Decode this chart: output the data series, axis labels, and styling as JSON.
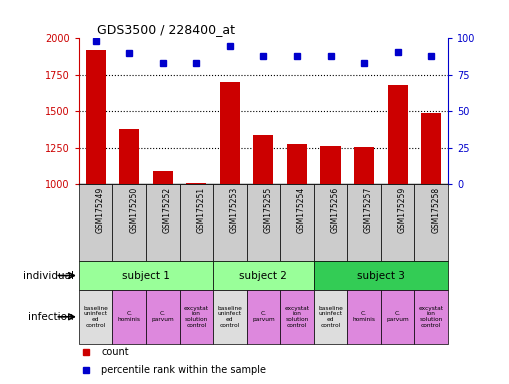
{
  "title": "GDS3500 / 228400_at",
  "samples": [
    "GSM175249",
    "GSM175250",
    "GSM175252",
    "GSM175251",
    "GSM175253",
    "GSM175255",
    "GSM175254",
    "GSM175256",
    "GSM175257",
    "GSM175259",
    "GSM175258"
  ],
  "counts": [
    1920,
    1380,
    1090,
    1010,
    1700,
    1340,
    1275,
    1265,
    1255,
    1680,
    1490
  ],
  "percentile_ranks": [
    98,
    90,
    83,
    83,
    95,
    88,
    88,
    88,
    83,
    91,
    88
  ],
  "ylim_left": [
    1000,
    2000
  ],
  "ylim_right": [
    0,
    100
  ],
  "yticks_left": [
    1000,
    1250,
    1500,
    1750,
    2000
  ],
  "yticks_right": [
    0,
    25,
    50,
    75,
    100
  ],
  "bar_color": "#cc0000",
  "dot_color": "#0000cc",
  "subjects": [
    {
      "label": "subject 1",
      "start": 0,
      "end": 4,
      "color": "#99ff99"
    },
    {
      "label": "subject 2",
      "start": 4,
      "end": 7,
      "color": "#99ff99"
    },
    {
      "label": "subject 3",
      "start": 7,
      "end": 11,
      "color": "#33cc55"
    }
  ],
  "infections": [
    {
      "label": "baseline\nuninfect\ned\ncontrol",
      "col": 0,
      "color": "#dddddd"
    },
    {
      "label": "C.\nhominis",
      "col": 1,
      "color": "#dd88dd"
    },
    {
      "label": "C.\nparvum",
      "col": 2,
      "color": "#dd88dd"
    },
    {
      "label": "excystat\nion\nsolution\ncontrol",
      "col": 3,
      "color": "#dd88dd"
    },
    {
      "label": "baseline\nuninfect\ned\ncontrol",
      "col": 4,
      "color": "#dddddd"
    },
    {
      "label": "C.\nparvum",
      "col": 5,
      "color": "#dd88dd"
    },
    {
      "label": "excystat\nion\nsolution\ncontrol",
      "col": 6,
      "color": "#dd88dd"
    },
    {
      "label": "baseline\nuninfect\ned\ncontrol",
      "col": 7,
      "color": "#dddddd"
    },
    {
      "label": "C.\nhominis",
      "col": 8,
      "color": "#dd88dd"
    },
    {
      "label": "C.\nparvum",
      "col": 9,
      "color": "#dd88dd"
    },
    {
      "label": "excystat\nion\nsolution\ncontrol",
      "col": 10,
      "color": "#dd88dd"
    }
  ],
  "bg_color": "#ffffff",
  "sample_bg": "#cccccc",
  "legend_items": [
    {
      "label": "count",
      "color": "#cc0000"
    },
    {
      "label": "percentile rank within the sample",
      "color": "#0000cc"
    }
  ],
  "left_labels": [
    "individual",
    "infection"
  ],
  "grid_yticks": [
    1250,
    1500,
    1750
  ]
}
